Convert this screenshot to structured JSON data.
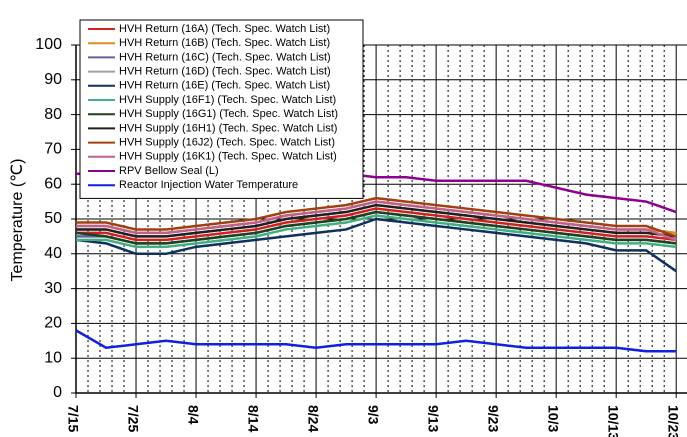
{
  "chart_data": {
    "type": "line",
    "ylabel": "Temperature (℃)",
    "x": [
      0,
      5,
      10,
      15,
      20,
      25,
      30,
      35,
      40,
      45,
      50,
      55,
      60,
      65,
      70,
      75,
      80,
      85,
      90,
      95,
      100
    ],
    "xlim": [
      0,
      101.8
    ],
    "xticks": [
      {
        "value": 0,
        "label": "7/15"
      },
      {
        "value": 10,
        "label": "7/25"
      },
      {
        "value": 20,
        "label": "8/4"
      },
      {
        "value": 30,
        "label": "8/14"
      },
      {
        "value": 40,
        "label": "8/24"
      },
      {
        "value": 50,
        "label": "9/3"
      },
      {
        "value": 60,
        "label": "9/13"
      },
      {
        "value": 70,
        "label": "9/23"
      },
      {
        "value": 80,
        "label": "10/3"
      },
      {
        "value": 90,
        "label": "10/13"
      },
      {
        "value": 100,
        "label": "10/23"
      }
    ],
    "ylim": [
      0,
      100
    ],
    "yticks": [
      0,
      10,
      20,
      30,
      40,
      50,
      60,
      70,
      80,
      90,
      100
    ],
    "grid": true,
    "legend": "upper left",
    "series": [
      {
        "name": "HVH Return (16A) (Tech. Spec. Watch List)",
        "color": "#d02020",
        "values": [
          46,
          46,
          44,
          44,
          45,
          46,
          47,
          49,
          50,
          51,
          53,
          52,
          51,
          50,
          49,
          48,
          47,
          46,
          45,
          45,
          44
        ]
      },
      {
        "name": "HVH Return (16B) (Tech. Spec. Watch List)",
        "color": "#e08a20",
        "values": [
          48,
          48,
          46,
          46,
          47,
          48,
          49,
          51,
          52,
          53,
          55,
          54,
          53,
          52,
          51,
          50,
          49,
          48,
          47,
          47,
          46
        ]
      },
      {
        "name": "HVH Return (16C) (Tech. Spec. Watch List)",
        "color": "#6060a0",
        "values": [
          45,
          45,
          43,
          43,
          44,
          45,
          46,
          48,
          49,
          50,
          52,
          51,
          50,
          49,
          48,
          47,
          46,
          45,
          44,
          44,
          43
        ]
      },
      {
        "name": "HVH Return (16D) (Tech. Spec. Watch List)",
        "color": "#a0a0a0",
        "values": [
          47,
          47,
          45,
          45,
          46,
          47,
          48,
          50,
          51,
          52,
          54,
          53,
          52,
          51,
          50,
          49,
          48,
          47,
          46,
          46,
          45
        ]
      },
      {
        "name": "HVH Return (16E) (Tech. Spec. Watch List)",
        "color": "#103060",
        "values": [
          44,
          43,
          40,
          40,
          42,
          43,
          44,
          45,
          46,
          47,
          50,
          49,
          48,
          47,
          46,
          45,
          44,
          43,
          41,
          41,
          35
        ]
      },
      {
        "name": "HVH Supply (16F1) (Tech. Spec. Watch List)",
        "color": "#40b080",
        "values": [
          44,
          44,
          42,
          42,
          43,
          44,
          45,
          47,
          48,
          49,
          51,
          50,
          49,
          48,
          47,
          46,
          45,
          44,
          43,
          43,
          42
        ]
      },
      {
        "name": "HVH Supply (16G1) (Tech. Spec. Watch List)",
        "color": "#204020",
        "values": [
          46,
          45,
          43,
          43,
          44,
          45,
          46,
          48,
          49,
          50,
          52,
          51,
          50,
          49,
          48,
          47,
          46,
          45,
          44,
          44,
          43
        ]
      },
      {
        "name": "HVH Supply (16H1) (Tech. Spec. Watch List)",
        "color": "#202020",
        "values": [
          47,
          47,
          45,
          45,
          46,
          47,
          48,
          50,
          51,
          52,
          54,
          53,
          52,
          51,
          50,
          49,
          48,
          47,
          46,
          46,
          45
        ]
      },
      {
        "name": "HVH Supply (16J2) (Tech. Spec. Watch List)",
        "color": "#a04010",
        "values": [
          49,
          49,
          47,
          47,
          48,
          49,
          50,
          52,
          53,
          54,
          56,
          55,
          54,
          53,
          52,
          51,
          50,
          49,
          48,
          48,
          45
        ]
      },
      {
        "name": "HVH Supply (16K1) (Tech. Spec. Watch List)",
        "color": "#c06090",
        "values": [
          48,
          48,
          46,
          46,
          47,
          48,
          49,
          51,
          52,
          53,
          55,
          54,
          53,
          52,
          51,
          50,
          49,
          48,
          47,
          47,
          44
        ]
      },
      {
        "name": "RPV Bellow Seal (L)",
        "color": "#900090",
        "values": [
          63,
          63,
          63,
          63,
          63,
          63,
          63,
          63,
          63,
          63,
          62,
          62,
          61,
          61,
          61,
          61,
          59,
          57,
          56,
          55,
          52
        ]
      },
      {
        "name": "Reactor Injection Water Temperature",
        "color": "#1020e0",
        "values": [
          18,
          13,
          14,
          15,
          14,
          14,
          14,
          14,
          13,
          14,
          14,
          14,
          14,
          15,
          14,
          13,
          13,
          13,
          13,
          12,
          12
        ]
      }
    ]
  }
}
